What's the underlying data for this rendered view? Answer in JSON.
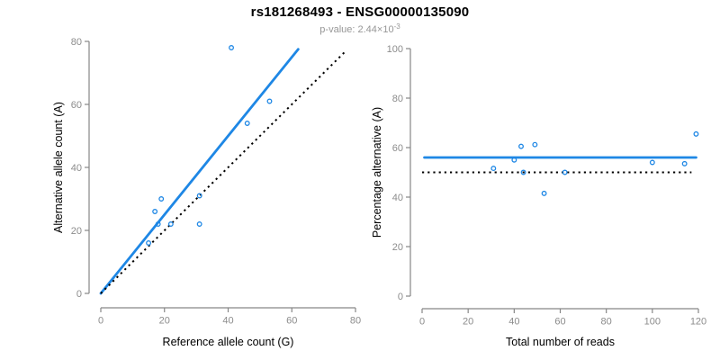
{
  "header": {
    "title": "rs181268493 - ENSG00000135090",
    "subtitle_base": "p-value: 2.44×10",
    "subtitle_exponent": "-3"
  },
  "colors": {
    "accent_blue": "#1E87E5",
    "reference_black": "#000000",
    "axis_line": "#878787",
    "tick_label": "#8C8C8C",
    "axis_title": "#000000",
    "subtitle_gray": "#969696"
  },
  "chart_data": [
    {
      "type": "scatter",
      "title": "",
      "xlabel": "Reference allele count (G)",
      "ylabel": "Alternative allele count (A)",
      "xlim": [
        0,
        80
      ],
      "ylim": [
        0,
        80
      ],
      "xticks": [
        0,
        20,
        40,
        60,
        80
      ],
      "yticks": [
        0,
        20,
        40,
        60,
        80
      ],
      "grid": false,
      "legend": null,
      "points": [
        [
          15,
          16
        ],
        [
          17,
          26
        ],
        [
          18,
          22
        ],
        [
          19,
          30
        ],
        [
          22,
          22
        ],
        [
          31,
          22
        ],
        [
          31,
          31
        ],
        [
          41,
          78
        ],
        [
          46,
          54
        ],
        [
          53,
          61
        ]
      ],
      "lines": [
        {
          "name": "fit-line",
          "style": "solid",
          "color": "accent_blue",
          "x1": 0,
          "y1": 0,
          "x2": 62,
          "y2": 77.5
        },
        {
          "name": "identity-line",
          "style": "dotted",
          "color": "reference_black",
          "x1": 0,
          "y1": 0,
          "x2": 77,
          "y2": 77
        }
      ]
    },
    {
      "type": "scatter",
      "title": "",
      "xlabel": "Total number of reads",
      "ylabel": "Percentage alternative (A)",
      "xlim": [
        0,
        120
      ],
      "ylim": [
        0,
        100
      ],
      "xticks": [
        0,
        20,
        40,
        60,
        80,
        100,
        120
      ],
      "yticks": [
        0,
        20,
        40,
        60,
        80,
        100
      ],
      "grid": false,
      "legend": null,
      "points": [
        [
          31,
          51.6
        ],
        [
          40,
          55
        ],
        [
          43,
          60.5
        ],
        [
          44,
          50
        ],
        [
          49,
          61.2
        ],
        [
          53,
          41.5
        ],
        [
          62,
          50
        ],
        [
          100,
          54
        ],
        [
          114,
          53.5
        ],
        [
          119,
          65.5
        ]
      ],
      "lines": [
        {
          "name": "fit-line",
          "style": "solid",
          "color": "accent_blue",
          "x1": 1,
          "y1": 56,
          "x2": 119,
          "y2": 56
        },
        {
          "name": "reference-line",
          "style": "dotted",
          "color": "reference_black",
          "x1": 0,
          "y1": 50,
          "x2": 117,
          "y2": 50
        }
      ]
    }
  ]
}
